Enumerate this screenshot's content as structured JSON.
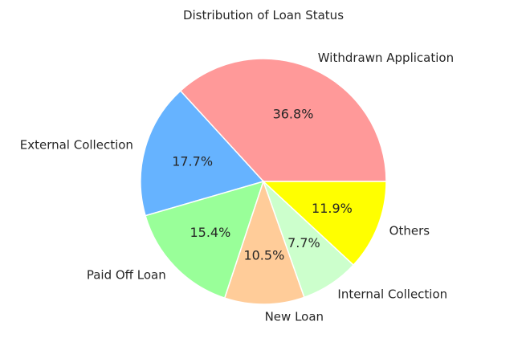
{
  "chart_data": {
    "type": "pie",
    "title": "Distribution of Loan Status",
    "slices": [
      {
        "label": "Withdrawn Application",
        "value": 36.8,
        "pct_text": "36.8%",
        "color": "#ff9999"
      },
      {
        "label": "External Collection",
        "value": 17.7,
        "pct_text": "17.7%",
        "color": "#66b3ff"
      },
      {
        "label": "Paid Off Loan",
        "value": 15.4,
        "pct_text": "15.4%",
        "color": "#99ff99"
      },
      {
        "label": "New Loan",
        "value": 10.5,
        "pct_text": "10.5%",
        "color": "#ffcc99"
      },
      {
        "label": "Internal Collection",
        "value": 7.7,
        "pct_text": "7.7%",
        "color": "#ccffcc"
      },
      {
        "label": "Others",
        "value": 11.9,
        "pct_text": "11.9%",
        "color": "#ffff00"
      }
    ],
    "start_angle_deg": 0,
    "direction": "counterclockwise"
  }
}
